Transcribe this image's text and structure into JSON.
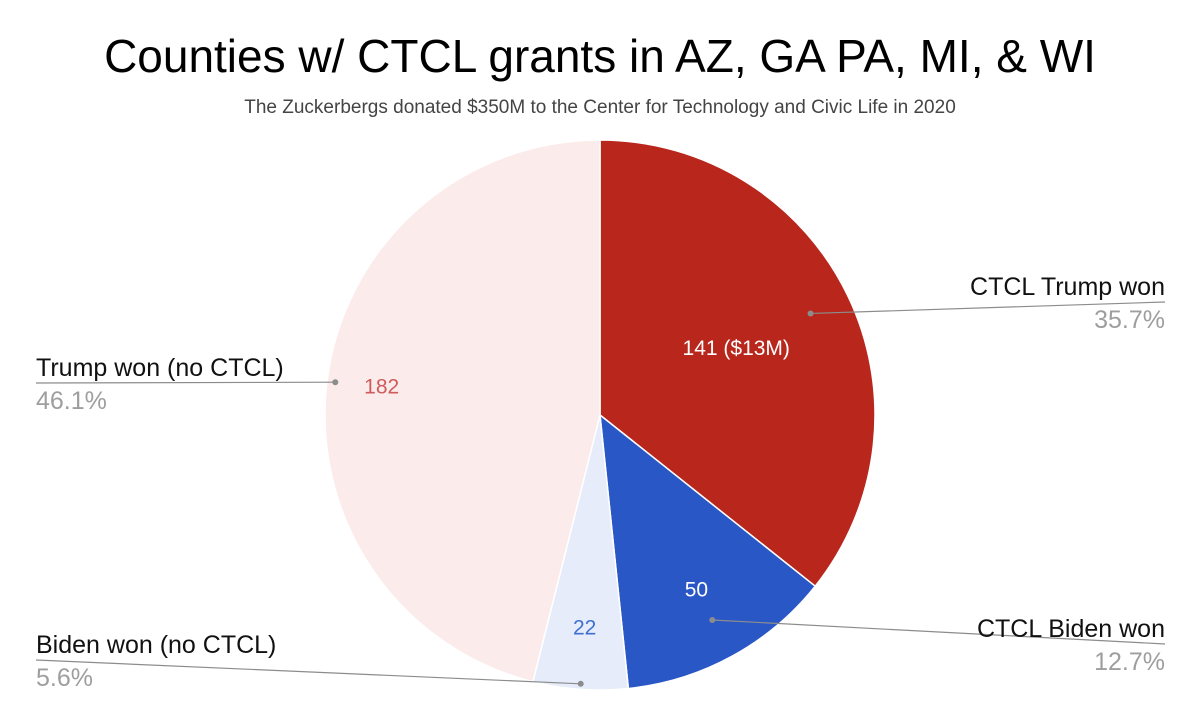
{
  "chart_data": {
    "type": "pie",
    "title": "Counties w/ CTCL grants in AZ, GA PA, MI, & WI",
    "subtitle": "The Zuckerbergs donated $350M to the Center for Technology and Civic Life in 2020",
    "start_angle": "12 o'clock",
    "direction": "clockwise",
    "slices": [
      {
        "name": "CTCL Trump won",
        "value": 141,
        "label": "141 ($13M)",
        "percent": "35.7%",
        "color": "#b8261c",
        "label_color": "#ffffff"
      },
      {
        "name": "CTCL Biden won",
        "value": 50,
        "label": "50",
        "percent": "12.7%",
        "color": "#2a57c6",
        "label_color": "#ffffff"
      },
      {
        "name": "Biden won (no CTCL)",
        "value": 22,
        "label": "22",
        "percent": "5.6%",
        "color": "#e6ecfa",
        "label_color": "#3f6fd0"
      },
      {
        "name": "Trump won (no CTCL)",
        "value": 182,
        "label": "182",
        "percent": "46.1%",
        "color": "#fcebeb",
        "label_color": "#d05b5b"
      }
    ]
  }
}
